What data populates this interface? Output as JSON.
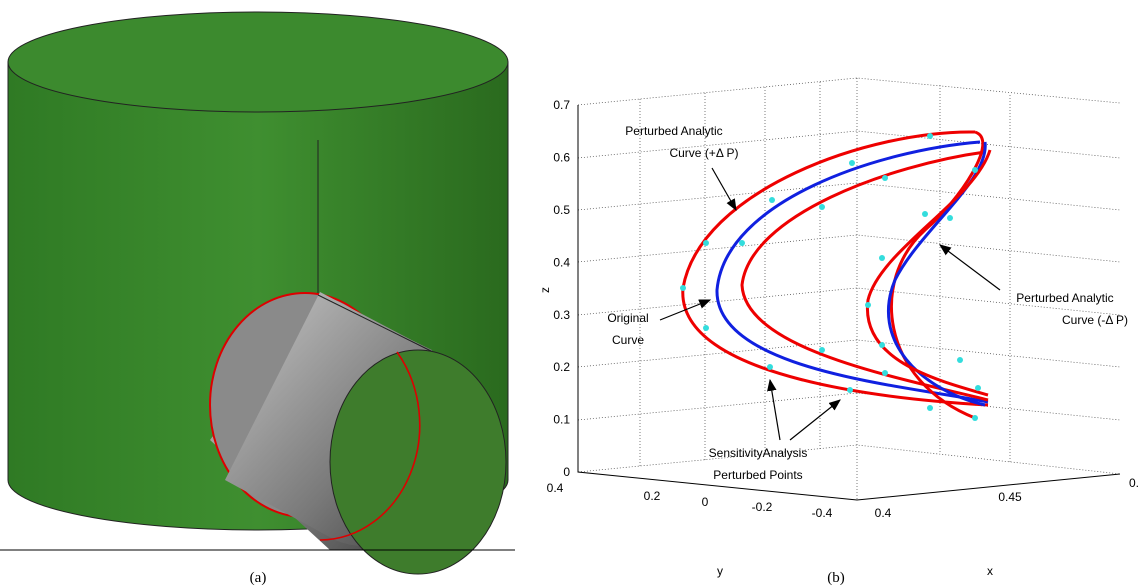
{
  "panel_a": {
    "caption": "(a)"
  },
  "panel_b": {
    "caption": "(b)",
    "z_axis": {
      "label": "z",
      "ticks": [
        "0",
        "0.1",
        "0.2",
        "0.3",
        "0.4",
        "0.5",
        "0.6",
        "0.7"
      ]
    },
    "y_axis": {
      "label": "y",
      "ticks": [
        "0.4",
        "0.2",
        "0",
        "-0.2",
        "-0.4"
      ]
    },
    "x_axis": {
      "label": "x",
      "ticks": [
        "0.4",
        "0.45",
        "0."
      ]
    },
    "annotations": [
      {
        "lines": [
          "Perturbed Analytic",
          "Curve (+Δ P)"
        ]
      },
      {
        "lines": [
          "Original",
          "Curve"
        ]
      },
      {
        "lines": [
          "Perturbed Analytic",
          "Curve (-Δ P)"
        ]
      },
      {
        "lines": [
          "SensitivityAnalysis",
          "Perturbed Points"
        ]
      }
    ]
  }
}
